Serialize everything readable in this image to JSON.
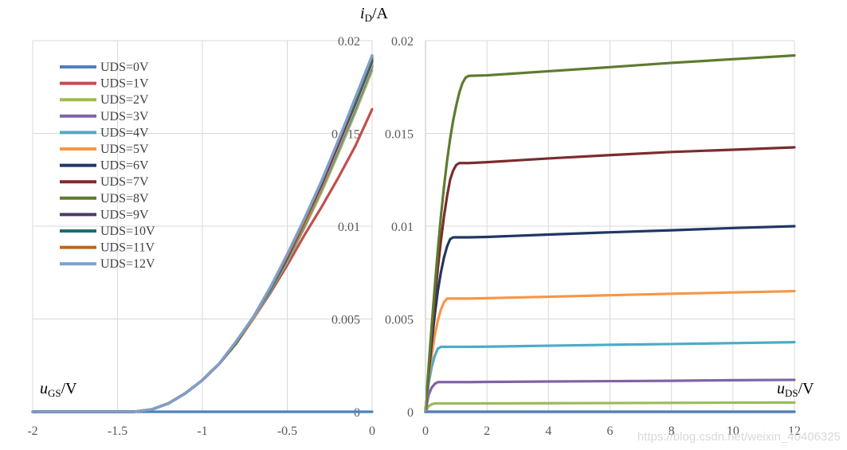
{
  "chart_data": [
    {
      "type": "line",
      "id": "transfer",
      "title": "",
      "xlabel_var": "u",
      "xlabel_sub": "GS",
      "xlabel_unit": "/V",
      "xlim": [
        -2,
        0
      ],
      "ylim": [
        0,
        0.02
      ],
      "xticks": [
        "-2",
        "-1.5",
        "-1",
        "-0.5",
        "0"
      ],
      "yticks": [
        "0",
        "0.005",
        "0.01",
        "0.015",
        "0.02"
      ],
      "grid": true,
      "legend": "top-left",
      "x": [
        -2,
        -1.5,
        -1.4,
        -1.3,
        -1.2,
        -1.1,
        -1.0,
        -0.9,
        -0.8,
        -0.7,
        -0.6,
        -0.5,
        -0.4,
        -0.3,
        -0.2,
        -0.1,
        0
      ],
      "series": [
        {
          "name": "UDS=0V",
          "color": "#4f81bd",
          "values": [
            0,
            0,
            0,
            0,
            0,
            0,
            0,
            0,
            0,
            0,
            0,
            0,
            0,
            0,
            0,
            0,
            0
          ]
        },
        {
          "name": "UDS=1V",
          "color": "#c0504d",
          "values": [
            0,
            0,
            0,
            0.00012,
            0.00045,
            0.001,
            0.0017,
            0.0026,
            0.0037,
            0.005,
            0.0064,
            0.0079,
            0.0095,
            0.011,
            0.0126,
            0.0143,
            0.0163
          ]
        },
        {
          "name": "UDS=2V",
          "color": "#9bbb59",
          "values": [
            0,
            0,
            0,
            0.00012,
            0.00045,
            0.001,
            0.0017,
            0.0026,
            0.0037,
            0.005,
            0.0065,
            0.0081,
            0.0099,
            0.0118,
            0.0139,
            0.0161,
            0.0184
          ]
        },
        {
          "name": "UDS=3V",
          "color": "#8064a2",
          "values": [
            0,
            0,
            0,
            0.00012,
            0.00045,
            0.001,
            0.0017,
            0.0026,
            0.0037,
            0.005,
            0.0065,
            0.0082,
            0.01,
            0.012,
            0.0141,
            0.0163,
            0.0186
          ]
        },
        {
          "name": "UDS=4V",
          "color": "#4bacc6",
          "values": [
            0,
            0,
            0,
            0.00012,
            0.00045,
            0.001,
            0.0017,
            0.0026,
            0.0037,
            0.005,
            0.0065,
            0.0082,
            0.0101,
            0.0121,
            0.0142,
            0.0164,
            0.0187
          ]
        },
        {
          "name": "UDS=5V",
          "color": "#f79646",
          "values": [
            0,
            0,
            0,
            0.00012,
            0.00045,
            0.001,
            0.0017,
            0.0026,
            0.0037,
            0.005,
            0.0066,
            0.0083,
            0.0101,
            0.0121,
            0.0143,
            0.0165,
            0.0188
          ]
        },
        {
          "name": "UDS=6V",
          "color": "#1f3864",
          "values": [
            0,
            0,
            0,
            0.00012,
            0.00045,
            0.001,
            0.0017,
            0.0026,
            0.0037,
            0.0051,
            0.0066,
            0.0083,
            0.0102,
            0.0122,
            0.0144,
            0.0166,
            0.0189
          ]
        },
        {
          "name": "UDS=7V",
          "color": "#7b2c2c",
          "values": [
            0,
            0,
            0,
            0.00012,
            0.00045,
            0.001,
            0.0017,
            0.0026,
            0.0037,
            0.0051,
            0.0066,
            0.0083,
            0.0102,
            0.0122,
            0.0144,
            0.0167,
            0.019
          ]
        },
        {
          "name": "UDS=8V",
          "color": "#5e7b2f",
          "values": [
            0,
            0,
            0,
            0.00012,
            0.00045,
            0.001,
            0.0017,
            0.0026,
            0.0037,
            0.0051,
            0.0066,
            0.0084,
            0.0102,
            0.0123,
            0.0145,
            0.0167,
            0.019
          ]
        },
        {
          "name": "UDS=9V",
          "color": "#4b3b6b",
          "values": [
            0,
            0,
            0,
            0.00012,
            0.00045,
            0.001,
            0.0017,
            0.0026,
            0.0038,
            0.0051,
            0.0067,
            0.0084,
            0.0103,
            0.0123,
            0.0145,
            0.0168,
            0.0191
          ]
        },
        {
          "name": "UDS=10V",
          "color": "#1f6b75",
          "values": [
            0,
            0,
            0,
            0.00012,
            0.00045,
            0.001,
            0.0017,
            0.0026,
            0.0038,
            0.0051,
            0.0067,
            0.0084,
            0.0103,
            0.0123,
            0.0146,
            0.0168,
            0.0191
          ]
        },
        {
          "name": "UDS=11V",
          "color": "#c0661f",
          "values": [
            0,
            0,
            0,
            0.00012,
            0.00045,
            0.001,
            0.0017,
            0.0026,
            0.0038,
            0.0051,
            0.0067,
            0.0084,
            0.0103,
            0.0124,
            0.0146,
            0.0169,
            0.0192
          ]
        },
        {
          "name": "UDS=12V",
          "color": "#7f9fcf",
          "values": [
            0,
            0,
            0,
            0.00012,
            0.00045,
            0.001,
            0.0017,
            0.0026,
            0.0038,
            0.0051,
            0.0067,
            0.0085,
            0.0104,
            0.0124,
            0.0146,
            0.0169,
            0.0192
          ]
        }
      ]
    },
    {
      "type": "line",
      "id": "output",
      "title": "",
      "ylabel_var": "i",
      "ylabel_sub": "D",
      "ylabel_unit": "/A",
      "xlabel_var": "u",
      "xlabel_sub": "DS",
      "xlabel_unit": "/V",
      "xlim": [
        0,
        12
      ],
      "ylim": [
        0,
        0.02
      ],
      "xticks": [
        "0",
        "2",
        "4",
        "6",
        "8",
        "10",
        "12"
      ],
      "yticks": [
        "0",
        "0.005",
        "0.01",
        "0.015",
        "0.02"
      ],
      "grid": true,
      "x": [
        0,
        0.1,
        0.2,
        0.3,
        0.4,
        0.5,
        0.6,
        0.7,
        0.8,
        0.9,
        1.0,
        1.1,
        1.2,
        1.3,
        1.4,
        2,
        4,
        6,
        8,
        10,
        12
      ],
      "series": [
        {
          "color": "#c0504d",
          "values": [
            0,
            0,
            0,
            0,
            0,
            0,
            0,
            0,
            0,
            0,
            0,
            0,
            0,
            0,
            0,
            0,
            0,
            0,
            0,
            0,
            0
          ]
        },
        {
          "color": "#9bbb59",
          "values": [
            0,
            0.0003,
            0.0004,
            0.00045,
            0.00045,
            0.00045,
            0.00045,
            0.00045,
            0.00045,
            0.00045,
            0.00045,
            0.00045,
            0.00045,
            0.00045,
            0.00045,
            0.00045,
            0.00046,
            0.00047,
            0.00048,
            0.00049,
            0.0005
          ]
        },
        {
          "color": "#8064a2",
          "values": [
            0,
            0.0009,
            0.0013,
            0.0015,
            0.0016,
            0.0016,
            0.0016,
            0.0016,
            0.0016,
            0.0016,
            0.0016,
            0.0016,
            0.0016,
            0.0016,
            0.0016,
            0.00161,
            0.00163,
            0.00165,
            0.00167,
            0.0017,
            0.00172
          ]
        },
        {
          "color": "#4bacc6",
          "values": [
            0,
            0.0015,
            0.0024,
            0.003,
            0.0034,
            0.0035,
            0.0035,
            0.0035,
            0.0035,
            0.0035,
            0.0035,
            0.0035,
            0.0035,
            0.0035,
            0.0035,
            0.00351,
            0.00356,
            0.00361,
            0.00365,
            0.0037,
            0.00375
          ]
        },
        {
          "color": "#f79646",
          "values": [
            0,
            0.0018,
            0.003,
            0.0041,
            0.0049,
            0.0055,
            0.0059,
            0.0061,
            0.0061,
            0.0061,
            0.0061,
            0.0061,
            0.0061,
            0.0061,
            0.0061,
            0.00612,
            0.0062,
            0.00628,
            0.00636,
            0.00643,
            0.0065
          ]
        },
        {
          "color": "#1f3864",
          "values": [
            0,
            0.002,
            0.0037,
            0.0052,
            0.0065,
            0.0075,
            0.0083,
            0.0089,
            0.0093,
            0.0094,
            0.0094,
            0.0094,
            0.0094,
            0.0094,
            0.0094,
            0.00942,
            0.00955,
            0.00967,
            0.00978,
            0.0099,
            0.01
          ]
        },
        {
          "color": "#7b2c2c",
          "values": [
            0,
            0.0022,
            0.0042,
            0.006,
            0.0077,
            0.0092,
            0.0105,
            0.0116,
            0.0125,
            0.013,
            0.0133,
            0.0134,
            0.0134,
            0.0134,
            0.0134,
            0.01345,
            0.01365,
            0.01383,
            0.014,
            0.01412,
            0.01425
          ]
        },
        {
          "color": "#5e7b2f",
          "values": [
            0,
            0.0024,
            0.0046,
            0.0067,
            0.0087,
            0.0105,
            0.0121,
            0.0135,
            0.0147,
            0.0157,
            0.0165,
            0.0172,
            0.0177,
            0.018,
            0.0181,
            0.01813,
            0.01835,
            0.01857,
            0.0188,
            0.019,
            0.0192
          ]
        },
        {
          "color": "#4f81bd",
          "values": [
            0,
            0,
            0,
            0,
            0,
            0,
            0,
            0,
            0,
            0,
            0,
            0,
            0,
            0,
            0,
            0,
            0,
            0,
            0,
            0,
            0
          ]
        }
      ]
    }
  ],
  "watermark": "https://blog.csdn.net/weixin_40406325"
}
